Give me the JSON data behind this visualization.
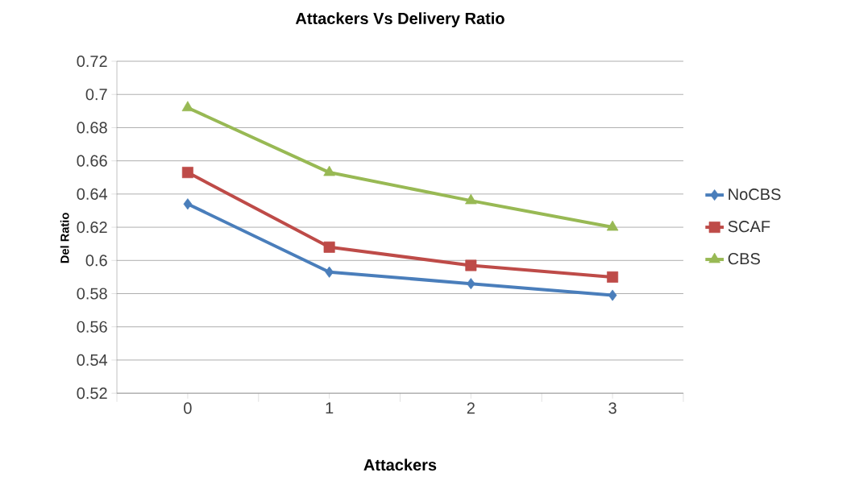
{
  "chart_data": {
    "type": "line",
    "title": "Attackers Vs Delivery Ratio",
    "xlabel": "Attackers",
    "ylabel": "Del Ratio",
    "categories": [
      "0",
      "1",
      "2",
      "3"
    ],
    "series": [
      {
        "name": "NoCBS",
        "color": "#4a7ebb",
        "marker": "diamond",
        "values": [
          0.634,
          0.593,
          0.586,
          0.579
        ]
      },
      {
        "name": "SCAF",
        "color": "#be4b48",
        "marker": "square",
        "values": [
          0.653,
          0.608,
          0.597,
          0.59
        ]
      },
      {
        "name": "CBS",
        "color": "#98b954",
        "marker": "triangle",
        "values": [
          0.692,
          0.653,
          0.636,
          0.62
        ]
      }
    ],
    "ylim": [
      0.52,
      0.72
    ],
    "yticks": [
      0.52,
      0.54,
      0.56,
      0.58,
      0.6,
      0.62,
      0.64,
      0.66,
      0.68,
      0.7,
      0.72
    ],
    "grid": "y",
    "legend": "right",
    "line_style": "solid"
  }
}
